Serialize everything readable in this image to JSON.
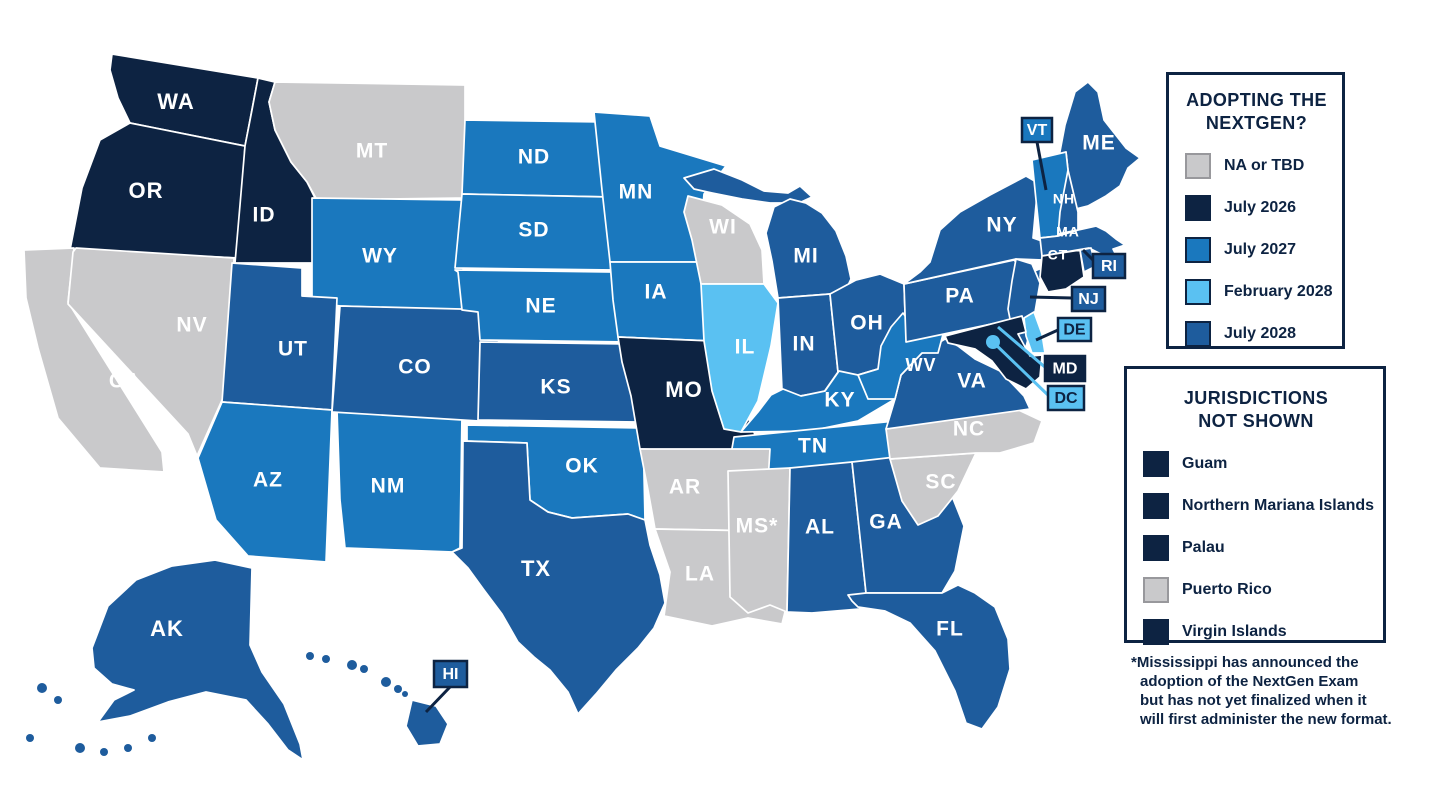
{
  "colors": {
    "na": "#c9c9cb",
    "jul2026": "#0d2342",
    "jul2027": "#1a78be",
    "feb2028": "#5ac1f2",
    "jul2028": "#1e5c9d",
    "state_border": "#ffffff",
    "gray_swatch_border": "#98989c",
    "navy_text": "#0d2342"
  },
  "legend_adopting": {
    "title_line1": "ADOPTING THE",
    "title_line2": "NEXTGEN?",
    "items": [
      {
        "label": "NA or TBD",
        "category": "na"
      },
      {
        "label": "July 2026",
        "category": "jul2026"
      },
      {
        "label": "July 2027",
        "category": "jul2027"
      },
      {
        "label": "February 2028",
        "category": "feb2028"
      },
      {
        "label": "July 2028",
        "category": "jul2028"
      }
    ]
  },
  "legend_jurisdictions": {
    "title_line1": "JURISDICTIONS",
    "title_line2": "NOT SHOWN",
    "items": [
      {
        "label": "Guam",
        "category": "jul2026"
      },
      {
        "label": "Northern Mariana Islands",
        "category": "jul2026"
      },
      {
        "label": "Palau",
        "category": "jul2026"
      },
      {
        "label": "Puerto Rico",
        "category": "na"
      },
      {
        "label": "Virgin Islands",
        "category": "jul2026"
      }
    ]
  },
  "footnote_lines": [
    "*Mississippi has announced the",
    "adoption of the NextGen Exam",
    "but has not yet finalized when it",
    "will first administer the new format.",
    ""
  ],
  "map": {
    "states": [
      {
        "id": "WA",
        "label": "WA",
        "category": "jul2026"
      },
      {
        "id": "OR",
        "label": "OR",
        "category": "jul2026"
      },
      {
        "id": "CA",
        "label": "CA",
        "category": "na"
      },
      {
        "id": "NV",
        "label": "NV",
        "category": "na"
      },
      {
        "id": "ID",
        "label": "ID",
        "category": "jul2026"
      },
      {
        "id": "MT",
        "label": "MT",
        "category": "na"
      },
      {
        "id": "WY",
        "label": "WY",
        "category": "jul2027"
      },
      {
        "id": "UT",
        "label": "UT",
        "category": "jul2028"
      },
      {
        "id": "AZ",
        "label": "AZ",
        "category": "jul2027"
      },
      {
        "id": "NM",
        "label": "NM",
        "category": "jul2027"
      },
      {
        "id": "CO",
        "label": "CO",
        "category": "jul2028"
      },
      {
        "id": "ND",
        "label": "ND",
        "category": "jul2027"
      },
      {
        "id": "SD",
        "label": "SD",
        "category": "jul2027"
      },
      {
        "id": "NE",
        "label": "NE",
        "category": "jul2027"
      },
      {
        "id": "KS",
        "label": "KS",
        "category": "jul2028"
      },
      {
        "id": "OK",
        "label": "OK",
        "category": "jul2027"
      },
      {
        "id": "TX",
        "label": "TX",
        "category": "jul2028"
      },
      {
        "id": "MN",
        "label": "MN",
        "category": "jul2027"
      },
      {
        "id": "IA",
        "label": "IA",
        "category": "jul2027"
      },
      {
        "id": "MO",
        "label": "MO",
        "category": "jul2026"
      },
      {
        "id": "WI",
        "label": "WI",
        "category": "na"
      },
      {
        "id": "IL",
        "label": "IL",
        "category": "feb2028"
      },
      {
        "id": "MI",
        "label": "MI",
        "category": "jul2028"
      },
      {
        "id": "IN",
        "label": "IN",
        "category": "jul2028"
      },
      {
        "id": "OH",
        "label": "OH",
        "category": "jul2028"
      },
      {
        "id": "KY",
        "label": "KY",
        "category": "jul2027"
      },
      {
        "id": "TN",
        "label": "TN",
        "category": "jul2027"
      },
      {
        "id": "AR",
        "label": "AR",
        "category": "na"
      },
      {
        "id": "LA",
        "label": "LA",
        "category": "na"
      },
      {
        "id": "MS",
        "label": "MS*",
        "category": "na"
      },
      {
        "id": "AL",
        "label": "AL",
        "category": "jul2028"
      },
      {
        "id": "GA",
        "label": "GA",
        "category": "jul2028"
      },
      {
        "id": "FL",
        "label": "FL",
        "category": "jul2028"
      },
      {
        "id": "SC",
        "label": "SC",
        "category": "na"
      },
      {
        "id": "NC",
        "label": "NC",
        "category": "na"
      },
      {
        "id": "VA",
        "label": "VA",
        "category": "jul2028"
      },
      {
        "id": "WV",
        "label": "WV",
        "category": "jul2027"
      },
      {
        "id": "PA",
        "label": "PA",
        "category": "jul2028"
      },
      {
        "id": "NY",
        "label": "NY",
        "category": "jul2028"
      },
      {
        "id": "NJ",
        "label": "",
        "category": "jul2028"
      },
      {
        "id": "ME",
        "label": "ME",
        "category": "jul2028"
      },
      {
        "id": "NH",
        "label": "NH",
        "category": "jul2028"
      },
      {
        "id": "VT",
        "label": "",
        "category": "jul2027"
      },
      {
        "id": "MA",
        "label": "MA",
        "category": "jul2028"
      },
      {
        "id": "CT",
        "label": "CT",
        "category": "jul2026"
      },
      {
        "id": "RI",
        "label": "",
        "category": "jul2028"
      },
      {
        "id": "DE",
        "label": "",
        "category": "feb2028"
      },
      {
        "id": "MD",
        "label": "",
        "category": "jul2026"
      },
      {
        "id": "DC",
        "label": "",
        "category": "feb2028"
      },
      {
        "id": "AK",
        "label": "AK",
        "category": "jul2028"
      },
      {
        "id": "HI",
        "label": "",
        "category": "jul2028"
      }
    ],
    "callouts": [
      {
        "id": "VT",
        "label": "VT",
        "category": "jul2027"
      },
      {
        "id": "RI",
        "label": "RI",
        "category": "jul2028"
      },
      {
        "id": "NJ",
        "label": "NJ",
        "category": "jul2028"
      },
      {
        "id": "DE",
        "label": "DE",
        "category": "feb2028"
      },
      {
        "id": "MD",
        "label": "MD",
        "category": "jul2026"
      },
      {
        "id": "DC",
        "label": "DC",
        "category": "feb2028"
      },
      {
        "id": "HI",
        "label": "HI",
        "category": "jul2028"
      }
    ]
  }
}
